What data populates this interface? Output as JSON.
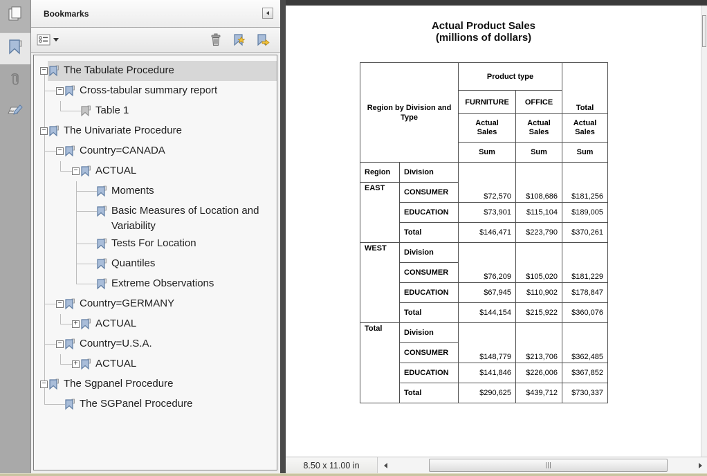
{
  "nav_strip": {
    "icons": [
      "page-thumbnails",
      "bookmarks",
      "attachments",
      "signature"
    ]
  },
  "bookmarks_panel": {
    "title": "Bookmarks",
    "toolbar_icons": [
      "bookmark-options",
      "dropdown-caret",
      "delete-bookmark",
      "new-bookmark",
      "bookmark-arrow"
    ],
    "tree": [
      {
        "label": "The Tabulate Procedure",
        "level": 0,
        "expander": "minus",
        "icon": "blue",
        "selected": true
      },
      {
        "label": "Cross-tabular summary report",
        "level": 1,
        "expander": "minus",
        "icon": "blue",
        "selected": false
      },
      {
        "label": "Table 1",
        "level": 2,
        "expander": "none",
        "icon": "gray",
        "selected": false
      },
      {
        "label": "The Univariate Procedure",
        "level": 0,
        "expander": "minus",
        "icon": "blue",
        "selected": false
      },
      {
        "label": "Country=CANADA",
        "level": 1,
        "expander": "minus",
        "icon": "blue",
        "selected": false
      },
      {
        "label": "ACTUAL",
        "level": 2,
        "expander": "minus",
        "icon": "blue",
        "selected": false
      },
      {
        "label": "Moments",
        "level": 3,
        "expander": "none",
        "icon": "blue",
        "selected": false
      },
      {
        "label": "Basic Measures of Location and Variability",
        "level": 3,
        "expander": "none",
        "icon": "blue",
        "selected": false
      },
      {
        "label": "Tests For Location",
        "level": 3,
        "expander": "none",
        "icon": "blue",
        "selected": false
      },
      {
        "label": "Quantiles",
        "level": 3,
        "expander": "none",
        "icon": "blue",
        "selected": false
      },
      {
        "label": "Extreme Observations",
        "level": 3,
        "expander": "none",
        "icon": "blue",
        "selected": false
      },
      {
        "label": "Country=GERMANY",
        "level": 1,
        "expander": "minus",
        "icon": "blue",
        "selected": false
      },
      {
        "label": "ACTUAL",
        "level": 2,
        "expander": "plus",
        "icon": "blue",
        "selected": false
      },
      {
        "label": "Country=U.S.A.",
        "level": 1,
        "expander": "minus",
        "icon": "blue",
        "selected": false
      },
      {
        "label": "ACTUAL",
        "level": 2,
        "expander": "plus",
        "icon": "blue",
        "selected": false
      },
      {
        "label": "The Sgpanel Procedure",
        "level": 0,
        "expander": "minus",
        "icon": "blue",
        "selected": false
      },
      {
        "label": "The SGPanel Procedure",
        "level": 1,
        "expander": "none",
        "icon": "blue",
        "selected": false
      }
    ]
  },
  "document": {
    "title_line1": "Actual Product Sales",
    "title_line2": "(millions of dollars)",
    "table": {
      "corner_label": "Region by Division and Type",
      "product_type_label": "Product type",
      "columns": [
        "FURNITURE",
        "OFFICE",
        "Total"
      ],
      "measure_label": "Actual\nSales",
      "stat_label": "Sum",
      "region_header": "Region",
      "division_header": "Division",
      "blocks": [
        {
          "region": "EAST",
          "rows": [
            {
              "division": "CONSUMER",
              "values": [
                "$72,570",
                "$108,686",
                "$181,256"
              ]
            },
            {
              "division": "EDUCATION",
              "values": [
                "$73,901",
                "$115,104",
                "$189,005"
              ]
            },
            {
              "division": "Total",
              "values": [
                "$146,471",
                "$223,790",
                "$370,261"
              ]
            }
          ]
        },
        {
          "region": "WEST",
          "rows": [
            {
              "division": "CONSUMER",
              "values": [
                "$76,209",
                "$105,020",
                "$181,229"
              ]
            },
            {
              "division": "EDUCATION",
              "values": [
                "$67,945",
                "$110,902",
                "$178,847"
              ]
            },
            {
              "division": "Total",
              "values": [
                "$144,154",
                "$215,922",
                "$360,076"
              ]
            }
          ]
        },
        {
          "region": "Total",
          "rows": [
            {
              "division": "CONSUMER",
              "values": [
                "$148,779",
                "$213,706",
                "$362,485"
              ]
            },
            {
              "division": "EDUCATION",
              "values": [
                "$141,846",
                "$226,006",
                "$367,852"
              ]
            },
            {
              "division": "Total",
              "values": [
                "$290,625",
                "$439,712",
                "$730,337"
              ]
            }
          ]
        }
      ]
    },
    "statusbar": {
      "page_size": "8.50 x 11.00 in"
    }
  }
}
